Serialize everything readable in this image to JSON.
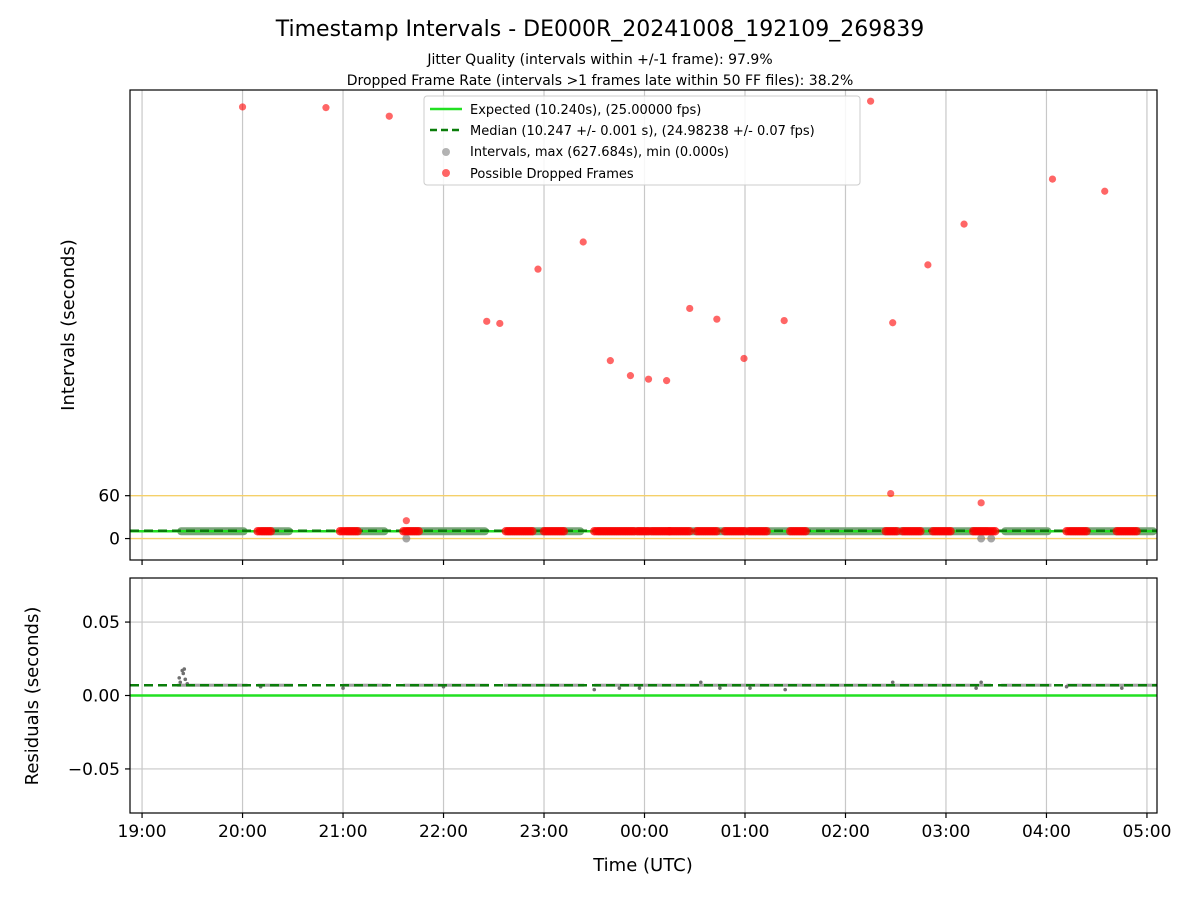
{
  "chart_data": {
    "title": "Timestamp Intervals - DE000R_20241008_192109_269839",
    "subtitles": [
      "Jitter Quality (intervals within +/-1 frame): 97.9%",
      "Dropped Frame Rate (intervals >1 frames late within 50 FF files): 38.2%"
    ],
    "xlabel": "Time (UTC)",
    "x_unit": "hours since 19:00 UTC (2024-10-08)",
    "x_ticks": [
      {
        "x": 0,
        "label": "19:00"
      },
      {
        "x": 1,
        "label": "20:00"
      },
      {
        "x": 2,
        "label": "21:00"
      },
      {
        "x": 3,
        "label": "22:00"
      },
      {
        "x": 4,
        "label": "23:00"
      },
      {
        "x": 5,
        "label": "00:00"
      },
      {
        "x": 6,
        "label": "01:00"
      },
      {
        "x": 7,
        "label": "02:00"
      },
      {
        "x": 8,
        "label": "03:00"
      },
      {
        "x": 9,
        "label": "04:00"
      },
      {
        "x": 10,
        "label": "05:00"
      }
    ],
    "xlim": [
      -0.12,
      10.1
    ],
    "top_panel": {
      "type": "scatter",
      "ylabel": "Intervals (seconds)",
      "ylim": [
        -30,
        627.684
      ],
      "yticks": [
        {
          "y": 0,
          "label": "0"
        },
        {
          "y": 60,
          "label": "60"
        }
      ],
      "hlines": [
        {
          "y": 0,
          "color": "#f5d06a",
          "style": "solid"
        },
        {
          "y": 60,
          "color": "#f5d06a",
          "style": "solid"
        }
      ],
      "series": [
        {
          "name": "Expected (10.240s), (25.00000 fps)",
          "kind": "line",
          "y": 10.24,
          "color": "#22e022",
          "style": "solid"
        },
        {
          "name": "Median (10.247 +/- 0.001 s), (24.98238 +/- 0.07 fps)",
          "kind": "line",
          "y": 10.247,
          "color": "#0a7d0a",
          "style": "dashed"
        },
        {
          "name": "Intervals, max (627.684s), min (0.000s)",
          "kind": "scatter",
          "color": "#808080",
          "clusters": [
            [
              0.35,
              1.05
            ],
            [
              1.15,
              1.5
            ],
            [
              2.0,
              2.45
            ],
            [
              2.6,
              3.45
            ],
            [
              3.6,
              4.4
            ],
            [
              4.5,
              8.45
            ],
            [
              8.55,
              9.05
            ],
            [
              9.2,
              10.1
            ]
          ],
          "outliers": [
            {
              "x": 2.63,
              "y": 0
            },
            {
              "x": 8.45,
              "y": 0
            },
            {
              "x": 8.35,
              "y": 0
            }
          ]
        },
        {
          "name": "Possible Dropped Frames",
          "kind": "scatter",
          "color": "#ff0000",
          "points": [
            {
              "x": 1.0,
              "y": 604
            },
            {
              "x": 1.83,
              "y": 603
            },
            {
              "x": 2.46,
              "y": 591
            },
            {
              "x": 2.63,
              "y": 25
            },
            {
              "x": 3.43,
              "y": 304
            },
            {
              "x": 3.56,
              "y": 301
            },
            {
              "x": 3.94,
              "y": 377
            },
            {
              "x": 4.39,
              "y": 415
            },
            {
              "x": 4.66,
              "y": 249
            },
            {
              "x": 4.86,
              "y": 228
            },
            {
              "x": 5.04,
              "y": 223
            },
            {
              "x": 5.22,
              "y": 221
            },
            {
              "x": 5.45,
              "y": 322
            },
            {
              "x": 5.72,
              "y": 307
            },
            {
              "x": 5.99,
              "y": 252
            },
            {
              "x": 6.39,
              "y": 305
            },
            {
              "x": 7.25,
              "y": 612
            },
            {
              "x": 7.47,
              "y": 302
            },
            {
              "x": 7.45,
              "y": 63
            },
            {
              "x": 7.82,
              "y": 383
            },
            {
              "x": 8.18,
              "y": 440
            },
            {
              "x": 8.35,
              "y": 50
            },
            {
              "x": 9.06,
              "y": 503
            },
            {
              "x": 9.58,
              "y": 486
            }
          ],
          "dense_segments": [
            [
              1.15,
              1.3
            ],
            [
              1.97,
              2.15
            ],
            [
              2.6,
              2.76
            ],
            [
              3.62,
              3.9
            ],
            [
              4.0,
              4.2
            ],
            [
              4.5,
              4.7
            ],
            [
              4.72,
              4.9
            ],
            [
              4.93,
              5.05
            ],
            [
              5.07,
              5.25
            ],
            [
              5.25,
              5.45
            ],
            [
              5.52,
              5.72
            ],
            [
              5.8,
              6.0
            ],
            [
              6.04,
              6.22
            ],
            [
              6.45,
              6.62
            ],
            [
              7.4,
              7.52
            ],
            [
              7.57,
              7.75
            ],
            [
              7.87,
              8.05
            ],
            [
              8.27,
              8.5
            ],
            [
              9.2,
              9.4
            ],
            [
              9.7,
              9.9
            ]
          ]
        }
      ],
      "legend_position": "upper center"
    },
    "bottom_panel": {
      "type": "scatter",
      "ylabel": "Residuals (seconds)",
      "ylim": [
        -0.08,
        0.08
      ],
      "yticks": [
        {
          "y": 0.05,
          "label": "0.05"
        },
        {
          "y": 0.0,
          "label": "0.00"
        },
        {
          "y": -0.05,
          "label": "−0.05"
        }
      ],
      "expected_residual": 0.0,
      "median_residual": 0.007,
      "residual_points": [
        {
          "x": 0.37,
          "y": 0.012
        },
        {
          "x": 0.4,
          "y": 0.017
        },
        {
          "x": 0.41,
          "y": 0.015
        },
        {
          "x": 0.42,
          "y": 0.018
        },
        {
          "x": 0.43,
          "y": 0.011
        },
        {
          "x": 0.38,
          "y": 0.009
        },
        {
          "x": 0.45,
          "y": 0.008
        },
        {
          "x": 1.18,
          "y": 0.006
        },
        {
          "x": 2.0,
          "y": 0.005
        },
        {
          "x": 3.0,
          "y": 0.006
        },
        {
          "x": 4.5,
          "y": 0.004
        },
        {
          "x": 4.75,
          "y": 0.005
        },
        {
          "x": 4.95,
          "y": 0.005
        },
        {
          "x": 5.56,
          "y": 0.009
        },
        {
          "x": 5.75,
          "y": 0.005
        },
        {
          "x": 6.05,
          "y": 0.005
        },
        {
          "x": 6.4,
          "y": 0.004
        },
        {
          "x": 7.47,
          "y": 0.009
        },
        {
          "x": 8.3,
          "y": 0.005
        },
        {
          "x": 8.35,
          "y": 0.009
        },
        {
          "x": 9.2,
          "y": 0.006
        },
        {
          "x": 9.75,
          "y": 0.005
        }
      ]
    },
    "grid": true
  }
}
